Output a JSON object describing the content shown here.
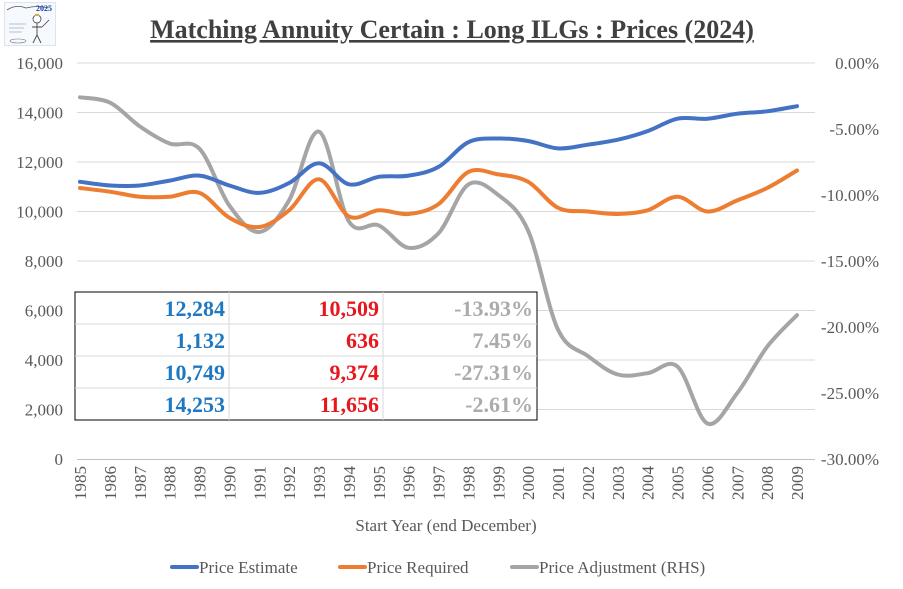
{
  "chart_data": {
    "type": "line",
    "title": "Matching Annuity Certain : Long ILGs : Prices (2024)",
    "xlabel": "Start Year (end December)",
    "ylabel_left": "",
    "ylabel_right": "",
    "categories": [
      "1985",
      "1986",
      "1987",
      "1988",
      "1989",
      "1990",
      "1991",
      "1992",
      "1993",
      "1994",
      "1995",
      "1996",
      "1997",
      "1998",
      "1999",
      "2000",
      "2001",
      "2002",
      "2003",
      "2004",
      "2005",
      "2006",
      "2007",
      "2008",
      "2009"
    ],
    "ylim_left": [
      0,
      16000
    ],
    "yticks_left": [
      "0",
      "2,000",
      "4,000",
      "6,000",
      "8,000",
      "10,000",
      "12,000",
      "14,000",
      "16,000"
    ],
    "ylim_right": [
      -30,
      0
    ],
    "yticks_right": [
      "-30.00%",
      "-25.00%",
      "-20.00%",
      "-15.00%",
      "-10.00%",
      "-5.00%",
      "0.00%"
    ],
    "grid": true,
    "legend_position": "bottom",
    "series": [
      {
        "name": "Price Estimate",
        "axis": "left",
        "color": "#4472C4",
        "values": [
          11200,
          11050,
          11050,
          11250,
          11450,
          11050,
          10750,
          11150,
          11950,
          11100,
          11400,
          11450,
          11800,
          12800,
          12950,
          12850,
          12550,
          12700,
          12900,
          13250,
          13750,
          13750,
          13950,
          14050,
          14253
        ]
      },
      {
        "name": "Price Required",
        "axis": "left",
        "color": "#ED7D31",
        "values": [
          10950,
          10800,
          10600,
          10600,
          10750,
          9750,
          9374,
          10050,
          11300,
          9800,
          10050,
          9900,
          10300,
          11600,
          11500,
          11200,
          10150,
          10000,
          9900,
          10050,
          10600,
          10000,
          10450,
          10950,
          11656
        ]
      },
      {
        "name": "Price Adjustment (RHS)",
        "axis": "right",
        "color": "#A5A5A5",
        "values": [
          -2.6,
          -3.0,
          -4.8,
          -6.1,
          -6.5,
          -10.8,
          -12.8,
          -10.4,
          -5.2,
          -12.0,
          -12.3,
          -14.0,
          -12.9,
          -9.2,
          -10.0,
          -12.7,
          -20.2,
          -22.2,
          -23.6,
          -23.5,
          -23.0,
          -27.31,
          -25.0,
          -21.5,
          -19.1
        ]
      }
    ]
  },
  "summary_table": {
    "rows": [
      [
        "12,284",
        "10,509",
        "-13.93%"
      ],
      [
        "1,132",
        "636",
        "7.45%"
      ],
      [
        "10,749",
        "9,374",
        "-27.31%"
      ],
      [
        "14,253",
        "11,656",
        "-2.61%"
      ]
    ],
    "colors": [
      "#1F78C1",
      "#E8161D",
      "#ABABAB"
    ]
  },
  "logo": {
    "year_text": "2025"
  }
}
